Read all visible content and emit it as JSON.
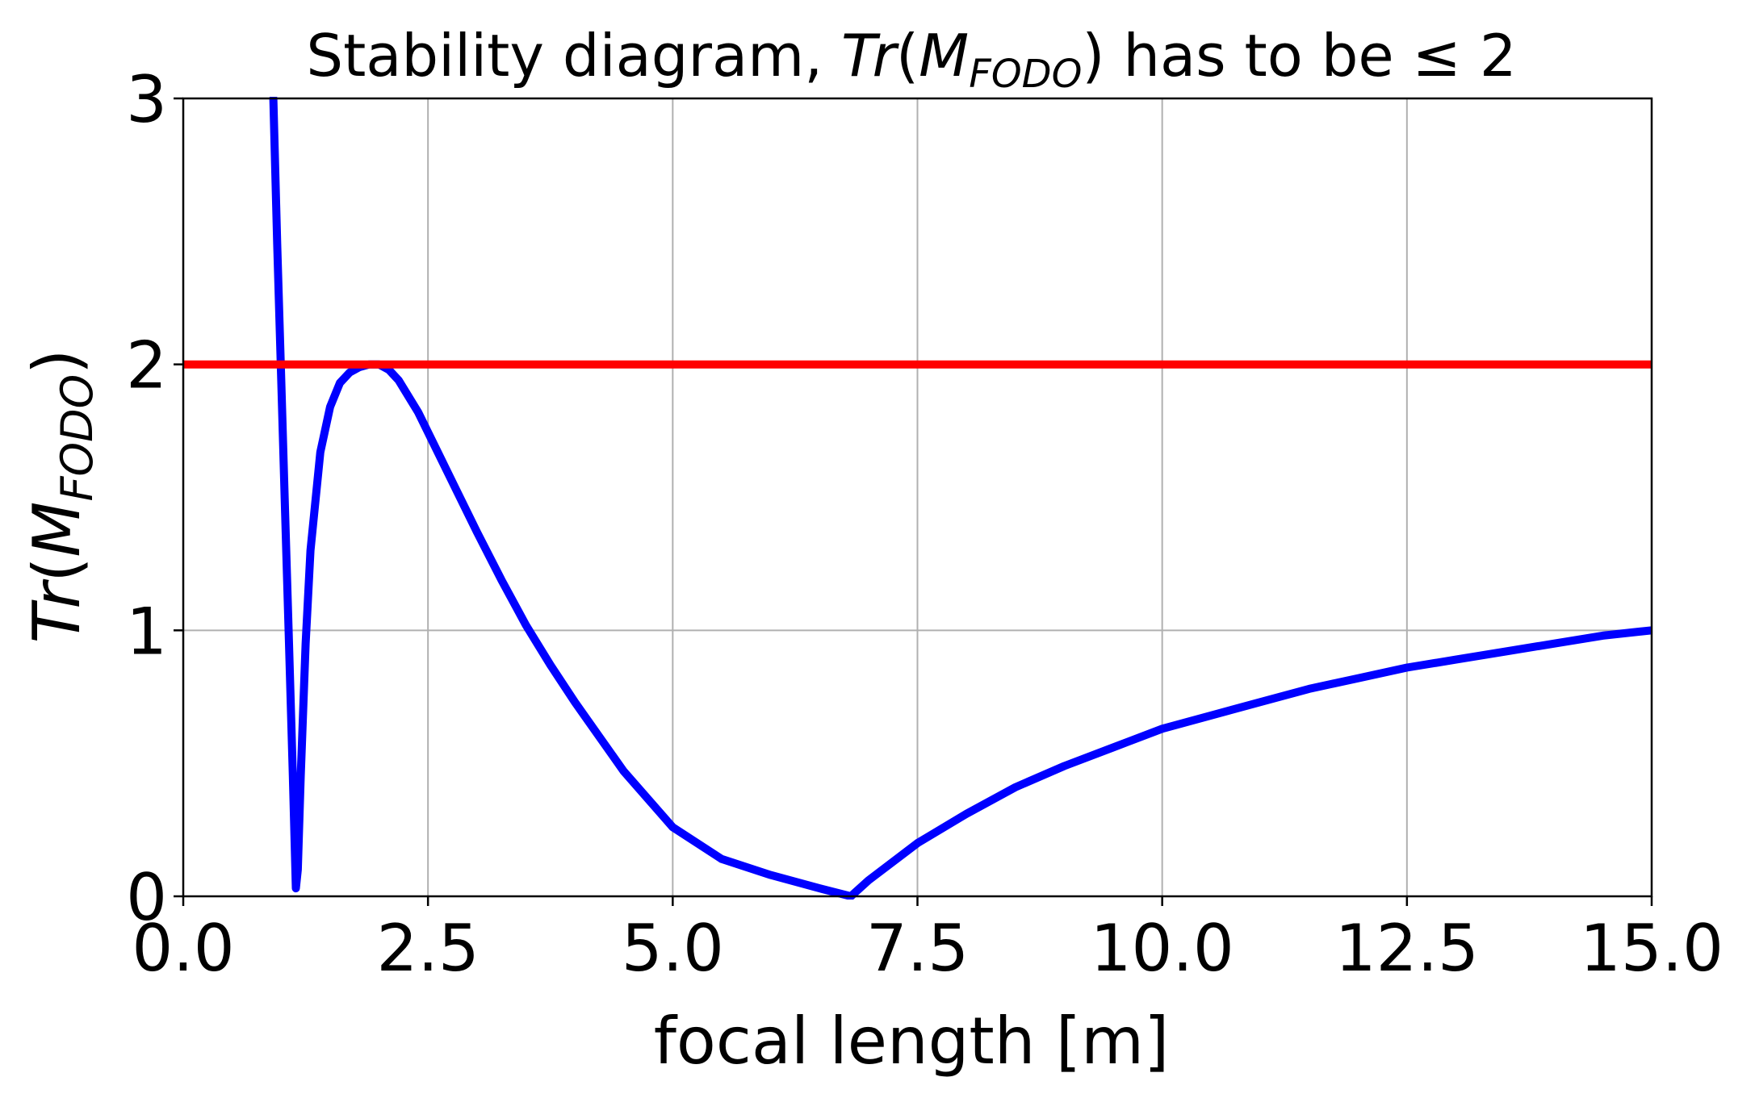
{
  "chart_data": {
    "type": "line",
    "title": {
      "prefix": "Stability diagram, ",
      "tr": "Tr",
      "open_paren": "(",
      "m": "M",
      "subscript": "FODO",
      "close_paren": ")",
      "suffix": " has to be ",
      "leq": "≤",
      "limit": "2"
    },
    "xlabel": "focal length [m]",
    "ylabel": {
      "tr": "Tr",
      "open_paren": "(",
      "m": "M",
      "subscript": "FODO",
      "close_paren": ")"
    },
    "xlim": [
      0,
      15
    ],
    "ylim": [
      0,
      3
    ],
    "x_ticks": [
      "0.0",
      "2.5",
      "5.0",
      "7.5",
      "10.0",
      "12.5",
      "15.0"
    ],
    "y_ticks": [
      "0",
      "1",
      "2",
      "3"
    ],
    "grid": true,
    "series": [
      {
        "color": "#0000ff",
        "x": [
          0.92,
          0.96,
          1.0,
          1.04,
          1.08,
          1.12,
          1.15,
          1.17,
          1.2,
          1.25,
          1.3,
          1.4,
          1.5,
          1.6,
          1.7,
          1.8,
          1.9,
          2.0,
          2.1,
          2.2,
          2.4,
          2.6,
          2.8,
          3.0,
          3.25,
          3.5,
          3.75,
          4.0,
          4.5,
          5.0,
          5.5,
          6.0,
          6.5,
          6.82,
          7.0,
          7.5,
          8.0,
          8.5,
          9.0,
          9.5,
          10.0,
          10.5,
          11.0,
          11.5,
          12.0,
          12.5,
          13.0,
          13.5,
          14.0,
          14.5,
          15.0
        ],
        "y": [
          3.0,
          2.45,
          1.95,
          1.45,
          0.95,
          0.45,
          0.03,
          0.1,
          0.45,
          0.95,
          1.3,
          1.67,
          1.84,
          1.93,
          1.97,
          1.99,
          2.0,
          2.0,
          1.98,
          1.94,
          1.82,
          1.67,
          1.52,
          1.37,
          1.19,
          1.02,
          0.87,
          0.73,
          0.47,
          0.26,
          0.14,
          0.08,
          0.03,
          0.0,
          0.06,
          0.2,
          0.31,
          0.41,
          0.49,
          0.56,
          0.63,
          0.68,
          0.73,
          0.78,
          0.82,
          0.86,
          0.89,
          0.92,
          0.95,
          0.98,
          1.0
        ]
      },
      {
        "color": "#ff0000",
        "x": [
          0,
          15
        ],
        "y": [
          2,
          2
        ]
      }
    ]
  }
}
